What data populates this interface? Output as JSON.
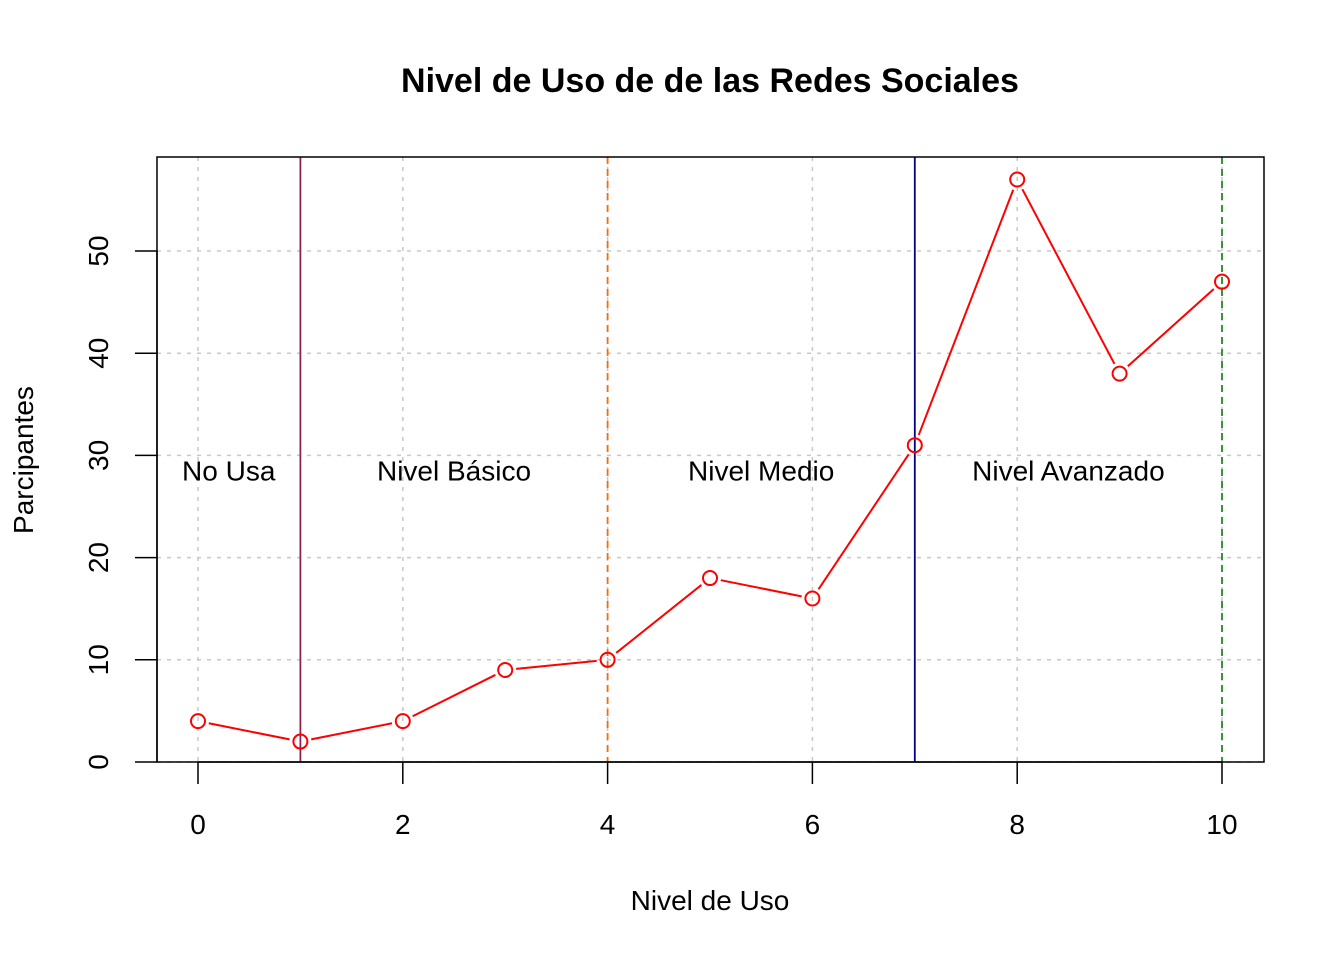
{
  "chart_data": {
    "type": "line",
    "title": "Nivel de Uso de de las Redes Sociales",
    "xlabel": "Nivel de Uso",
    "ylabel": "Parcipantes",
    "xlim": [
      0,
      10
    ],
    "ylim": [
      0,
      57
    ],
    "grid": true,
    "x_ticks": [
      0,
      2,
      4,
      6,
      8,
      10
    ],
    "x_tick_labels": [
      "0",
      "2",
      "4",
      "6",
      "8",
      "10"
    ],
    "y_ticks": [
      0,
      10,
      20,
      30,
      40,
      50
    ],
    "y_tick_labels": [
      "0",
      "10",
      "20",
      "30",
      "40",
      "50"
    ],
    "series": [
      {
        "color": "#ff0000",
        "marker": "open-circle",
        "x": [
          0,
          1,
          2,
          3,
          4,
          5,
          6,
          7,
          8,
          9,
          10
        ],
        "values": [
          4,
          2,
          4,
          9,
          10,
          18,
          16,
          31,
          57,
          38,
          47
        ]
      }
    ],
    "vertical_lines": [
      {
        "x": 1,
        "color": "#8b2252",
        "style": "solid"
      },
      {
        "x": 4,
        "color": "#ff6a00",
        "style": "dashed"
      },
      {
        "x": 7,
        "color": "#00008b",
        "style": "solid"
      },
      {
        "x": 10,
        "color": "#228b22",
        "style": "dashed"
      }
    ],
    "annotations": [
      {
        "text": "No Usa",
        "x": 0.3,
        "y": 28.5
      },
      {
        "text": "Nivel Básico",
        "x": 2.5,
        "y": 28.5
      },
      {
        "text": "Nivel Medio",
        "x": 5.5,
        "y": 28.5
      },
      {
        "text": "Nivel Avanzado",
        "x": 8.5,
        "y": 28.5
      }
    ]
  }
}
